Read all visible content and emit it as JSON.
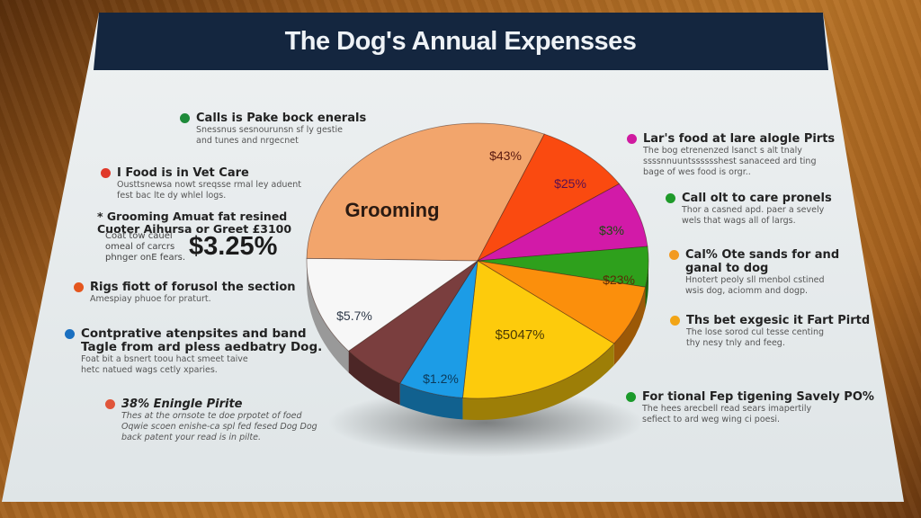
{
  "header": {
    "title": "The Dog's Annual Expensses",
    "bg_color": "#14263f"
  },
  "left_legend": [
    {
      "label": "Calls is Pake bock enerals",
      "color": "#1e8a3a",
      "lines": [
        "Snessnus sesnourunsn sf ly gestie",
        "and tunes and nrgecnet"
      ]
    },
    {
      "label": "I Food is in Vet Care",
      "color": "#e0392a",
      "lines": [
        "Ousttsnewsa nowt sreqsse rmal ley aduent",
        "fest bac lte dy whlel logs."
      ]
    },
    {
      "label": "Rigs fiott of forusol the section",
      "color": "#e4561e",
      "lines": [
        "Amespiay phuoe for praturt."
      ]
    },
    {
      "label": "Contprative atenpsites and band",
      "label2": "Tagle from ard pless aedbatry Dog.",
      "color": "#1a6fc0",
      "lines": [
        "Foat bit a bsnert toou hact smeet taive",
        "hetc natued wags cetly xparies."
      ]
    },
    {
      "label": "38% Eningle Pirite",
      "color": "#e0553a",
      "lines": [
        "Thes at the ornsote te doe prpotet of foed",
        "Oqwie scoen enishe-ca spl fed fesed Dog Dog",
        "back patent your read is in pilte."
      ]
    }
  ],
  "grooming_block": {
    "line1": "* Grooming Amuat fat resined",
    "line2": "Cuoter Aihursa or Greet £3100",
    "note": [
      "Coat tow cauel",
      "omeal of carcrs",
      "phnger onE fears."
    ],
    "stat": "$3.25%"
  },
  "right_legend": [
    {
      "label": "Lar's food at lare alogle Pirts",
      "color": "#d01aa0",
      "lines": [
        "The bog etrenenzed lsanct s alt tnaly",
        "ssssnnuuntsssssshest  sanaceed ard ting",
        "bage of wes food is orgr.."
      ]
    },
    {
      "label": "Call olt to care pronels",
      "color": "#1f9a2a",
      "lines": [
        "Thor a casned apd. paer a sevely",
        "wels that wags all of largs."
      ]
    },
    {
      "label": "Cal% Ote sands for and",
      "label2": "ganal to dog",
      "color": "#f29a22",
      "lines": [
        "Hnotert peoly sll menbol cstined",
        "wsis dog, aciomm and dogp."
      ]
    },
    {
      "label": "Ths bet exgesic it Fart Pirtd",
      "color": "#f2a516",
      "lines": [
        "The lose sorod cul tesse centing",
        "thy nesy tnly and feeg."
      ]
    },
    {
      "label": "For tional Fep tigening Savely PO%",
      "color": "#1a9a2a",
      "lines": [
        "The hees arecbell read sears imapertily",
        "sefiect to ard weg wing ci poesi."
      ]
    }
  ],
  "chart_data": {
    "type": "pie",
    "title": "The Dog's Annual Expensses",
    "slices": [
      {
        "label": "Grooming",
        "value_label": "",
        "color": "#f2a56c",
        "start": 181,
        "end": 293
      },
      {
        "label": "$43%",
        "value_label": "$43%",
        "color": "#fa4a10",
        "start": 293,
        "end": 326
      },
      {
        "label": "$25%",
        "value_label": "$25%",
        "color": "#d21aa8",
        "start": 326,
        "end": 354
      },
      {
        "label": "$3%",
        "value_label": "$3%",
        "color": "#2ea01c",
        "start": 354,
        "end": 371
      },
      {
        "label": "$23%",
        "value_label": "$23%",
        "color": "#fb8f0c",
        "start": 371,
        "end": 397
      },
      {
        "label": "$5047%",
        "value_label": "$5047%",
        "color": "#fdcb0c",
        "start": 397,
        "end": 455
      },
      {
        "label": "$1.2%",
        "value_label": "$1.2%",
        "color": "#1c9ce6",
        "start": 455,
        "end": 477
      },
      {
        "label": "",
        "value_label": "",
        "color": "#7a3e3e",
        "start": 477,
        "end": 499
      },
      {
        "label": "$5.7%",
        "value_label": "$5.7%",
        "color": "#f7f7f7",
        "start": 499,
        "end": 541
      }
    ],
    "legend_position": "both sides"
  }
}
